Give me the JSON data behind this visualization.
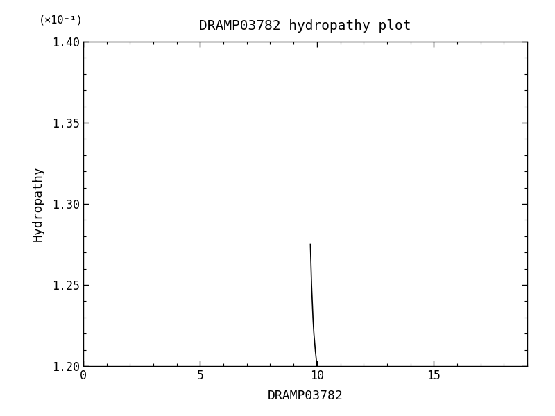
{
  "title": "DRAMP03782 hydropathy plot",
  "xlabel": "DRAMP03782",
  "ylabel": "Hydropathy",
  "multiplier_label": "(×10⁻¹)",
  "xlim": [
    0,
    19
  ],
  "ylim": [
    0.12,
    0.14
  ],
  "xticks": [
    0,
    5,
    10,
    15
  ],
  "yticks": [
    0.12,
    0.125,
    0.13,
    0.135,
    0.14
  ],
  "ytick_labels": [
    "1.20",
    "1.25",
    "1.30",
    "1.35",
    "1.40"
  ],
  "line_x": [
    10.0,
    9.93,
    9.87,
    9.83,
    9.8,
    9.77,
    9.75,
    9.73,
    9.72
  ],
  "line_y": [
    0.12,
    0.121,
    0.122,
    0.123,
    0.124,
    0.125,
    0.126,
    0.127,
    0.1275
  ],
  "line_color": "#000000",
  "bg_color": "#ffffff"
}
